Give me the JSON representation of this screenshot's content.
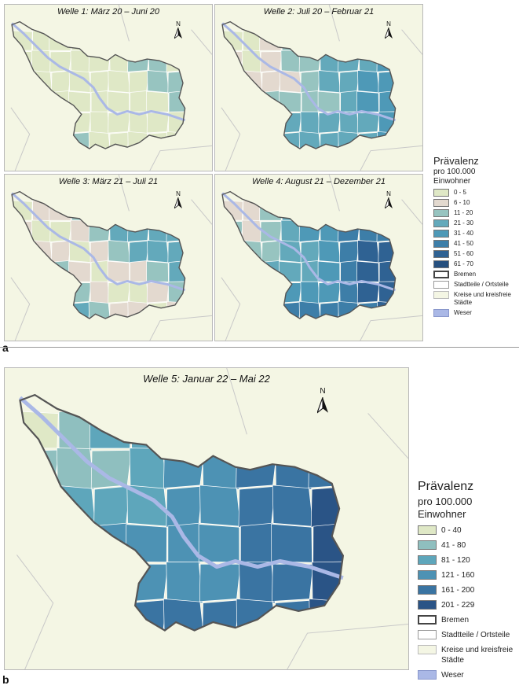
{
  "panel_a": {
    "letter": "a",
    "maps": [
      {
        "title": "Welle 1: März 20 – Juni 20",
        "fill_class": 0
      },
      {
        "title": "Welle 2: Juli 20 – Februar 21",
        "fill_class": 3
      },
      {
        "title": "Welle 3: März 21 – Juli 21",
        "fill_class": 1
      },
      {
        "title": "Welle 4: August 21 – Dezember 21",
        "fill_class": 5
      }
    ],
    "north_label": "N",
    "legend": {
      "title": "Prävalenz",
      "subtitle_line1": "pro 100.000",
      "subtitle_line2": "Einwohner",
      "classes": [
        {
          "label": "0 - 5",
          "color": "#dfe8c6"
        },
        {
          "label": "6 - 10",
          "color": "#e3d9cf"
        },
        {
          "label": "11 - 20",
          "color": "#97c4c0"
        },
        {
          "label": "21 - 30",
          "color": "#63a9bb"
        },
        {
          "label": "31 - 40",
          "color": "#4e99b7"
        },
        {
          "label": "41 - 50",
          "color": "#3d7ea8"
        },
        {
          "label": "51 - 60",
          "color": "#2f6293"
        },
        {
          "label": "61 - 70",
          "color": "#26507f"
        }
      ],
      "outline_items": [
        {
          "label": "Bremen"
        },
        {
          "label": "Stadtteile / Ortsteile"
        },
        {
          "label": "Kreise und kreisfreie Städte"
        },
        {
          "label": "Weser"
        }
      ]
    }
  },
  "panel_b": {
    "letter": "b",
    "title": "Welle 5: Januar 22 – Mai 22",
    "north_label": "N",
    "legend": {
      "title": "Prävalenz",
      "subtitle_line1": "pro 100.000",
      "subtitle_line2": "Einwohner",
      "classes": [
        {
          "label": "0 - 40",
          "color": "#dfe8c6"
        },
        {
          "label": "41 - 80",
          "color": "#8fbfbf"
        },
        {
          "label": "81 - 120",
          "color": "#5ea6bb"
        },
        {
          "label": "121 - 160",
          "color": "#4d92b4"
        },
        {
          "label": "161 - 200",
          "color": "#3a74a2"
        },
        {
          "label": "201 - 229",
          "color": "#2a5486"
        }
      ],
      "outline_items": [
        {
          "label": "Bremen"
        },
        {
          "label": "Stadtteile / Ortsteile"
        },
        {
          "label": "Kreise und kreisfreie Städte"
        },
        {
          "label": "Weser"
        }
      ]
    }
  },
  "colors": {
    "background_land": "#f4f6e4",
    "district_border": "#ffffff",
    "city_border": "#555555",
    "weser": "#aab8e6",
    "county_lines": "#c8c8c8"
  }
}
